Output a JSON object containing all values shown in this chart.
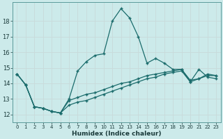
{
  "xlabel": "Humidex (Indice chaleur)",
  "bg_color": "#cceaea",
  "grid_color": "#b0d8d8",
  "line_color": "#1a6b6b",
  "xlim": [
    -0.5,
    23.5
  ],
  "ylim": [
    11.5,
    19.2
  ],
  "yticks": [
    12,
    13,
    14,
    15,
    16,
    17,
    18
  ],
  "xticks": [
    0,
    1,
    2,
    3,
    4,
    5,
    6,
    7,
    8,
    9,
    10,
    11,
    12,
    13,
    14,
    15,
    16,
    17,
    18,
    19,
    20,
    21,
    22,
    23
  ],
  "series": [
    [
      14.6,
      13.9,
      12.5,
      12.4,
      12.2,
      12.1,
      13.0,
      14.8,
      15.4,
      15.8,
      15.9,
      18.0,
      18.8,
      18.2,
      17.0,
      15.3,
      15.6,
      15.3,
      14.9,
      14.9,
      14.1,
      14.9,
      14.4,
      14.3
    ],
    [
      14.6,
      13.9,
      12.5,
      12.4,
      12.2,
      12.1,
      12.9,
      13.1,
      13.3,
      13.4,
      13.6,
      13.8,
      14.0,
      14.1,
      14.3,
      14.5,
      14.6,
      14.7,
      14.8,
      14.9,
      14.2,
      14.3,
      14.5,
      14.5
    ],
    [
      14.6,
      13.9,
      12.5,
      12.4,
      12.2,
      12.1,
      12.6,
      12.8,
      12.9,
      13.1,
      13.3,
      13.5,
      13.7,
      13.9,
      14.1,
      14.3,
      14.4,
      14.6,
      14.7,
      14.8,
      14.1,
      14.3,
      14.6,
      14.5
    ]
  ]
}
